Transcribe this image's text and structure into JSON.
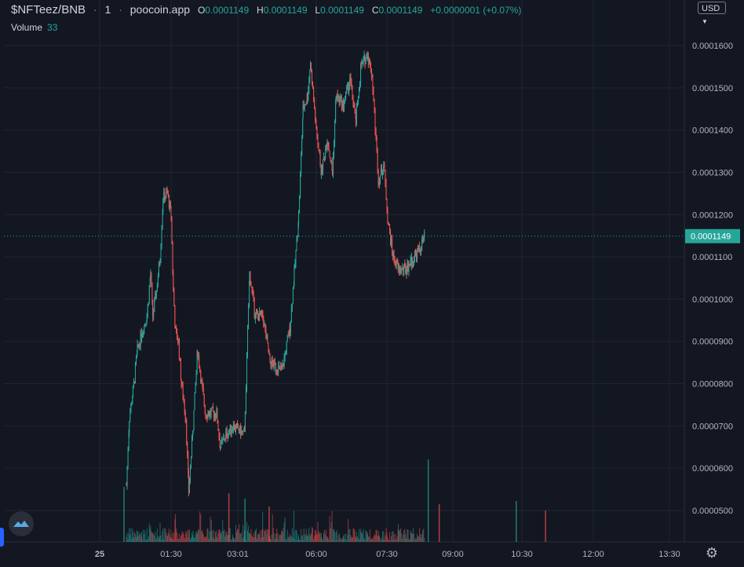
{
  "header": {
    "symbol": "$NFTeez/BNB",
    "interval": "1",
    "source": "poocoin.app",
    "open_label": "O",
    "open": "0.0001149",
    "high_label": "H",
    "high": "0.0001149",
    "low_label": "L",
    "low": "0.0001149",
    "close_label": "C",
    "close": "0.0001149",
    "change": "+0.0000001 (+0.07%)"
  },
  "volume": {
    "label": "Volume",
    "value": "33"
  },
  "currency": "USD",
  "icons": {
    "settings": "gear-icon",
    "logo": "poocoin-logo-icon",
    "currency_caret": "chevron-down-icon"
  },
  "colors": {
    "up": "#26a69a",
    "down": "#ef5350",
    "background": "#131722",
    "grid": "#1f2433",
    "text": "#b2b5be"
  },
  "chart_data": {
    "type": "candlestick",
    "y_ticks": [
      "0.0001600",
      "0.0001500",
      "0.0001400",
      "0.0001300",
      "0.0001200",
      "0.0001100",
      "0.0001000",
      "0.0000900",
      "0.0000800",
      "0.0000700",
      "0.0000600",
      "0.0000500"
    ],
    "x_ticks": [
      "25",
      "01:30",
      "03:01",
      "06:00",
      "07:30",
      "09:00",
      "10:30",
      "12:00",
      "13:30"
    ],
    "ylim": [
      4.55e-05,
      0.000168
    ],
    "last_price": "0.0001149",
    "price_path": [
      [
        "00:29",
        5.6e-05
      ],
      [
        "00:33",
        7.2e-05
      ],
      [
        "00:38",
        7.8e-05
      ],
      [
        "00:44",
        8.8e-05
      ],
      [
        "00:50",
        9.2e-05
      ],
      [
        "00:57",
        9.6e-05
      ],
      [
        "01:02",
        0.000106
      ],
      [
        "01:05",
        9.6e-05
      ],
      [
        "01:10",
        0.000102
      ],
      [
        "01:15",
        0.00011
      ],
      [
        "01:19",
        0.000124
      ],
      [
        "01:25",
        0.000125
      ],
      [
        "01:30",
        0.00012
      ],
      [
        "01:33",
        0.000102
      ],
      [
        "01:36",
        9.2e-05
      ],
      [
        "01:40",
        9e-05
      ],
      [
        "01:44",
        8e-05
      ],
      [
        "01:50",
        7.2e-05
      ],
      [
        "01:54",
        5.45e-05
      ],
      [
        "02:00",
        7e-05
      ],
      [
        "02:06",
        8.8e-05
      ],
      [
        "02:13",
        7.8e-05
      ],
      [
        "02:17",
        7.3e-05
      ],
      [
        "02:25",
        7.3e-05
      ],
      [
        "02:32",
        7.3e-05
      ],
      [
        "02:37",
        6.5e-05
      ],
      [
        "02:45",
        6.8e-05
      ],
      [
        "02:55",
        7e-05
      ],
      [
        "03:10",
        6.8e-05
      ],
      [
        "03:17",
        0.000106
      ],
      [
        "03:25",
        9.6e-05
      ],
      [
        "03:35",
        9.6e-05
      ],
      [
        "03:45",
        8.5e-05
      ],
      [
        "03:53",
        8.4e-05
      ],
      [
        "04:01",
        8.3e-05
      ],
      [
        "04:12",
        9.3e-05
      ],
      [
        "04:18",
        0.000106
      ],
      [
        "04:24",
        0.00012
      ],
      [
        "04:30",
        0.000145
      ],
      [
        "04:36",
        0.000148
      ],
      [
        "04:40",
        0.000156
      ],
      [
        "04:48",
        0.00014
      ],
      [
        "04:55",
        0.00013
      ],
      [
        "05:03",
        0.000138
      ],
      [
        "05:10",
        0.00013
      ],
      [
        "05:15",
        0.000148
      ],
      [
        "05:25",
        0.000146
      ],
      [
        "05:34",
        0.000152
      ],
      [
        "05:42",
        0.000142
      ],
      [
        "05:49",
        0.000155
      ],
      [
        "05:58",
        0.000158
      ],
      [
        "06:04",
        0.000153
      ],
      [
        "06:13",
        0.000128
      ],
      [
        "06:20",
        0.000132
      ],
      [
        "06:26",
        0.000118
      ],
      [
        "06:33",
        0.00011
      ],
      [
        "06:40",
        0.000107
      ],
      [
        "06:50",
        0.000107
      ],
      [
        "06:58",
        0.000109
      ],
      [
        "07:10",
        0.000112
      ],
      [
        "07:16",
        0.0001149
      ]
    ],
    "volume_bars_visible": true
  }
}
